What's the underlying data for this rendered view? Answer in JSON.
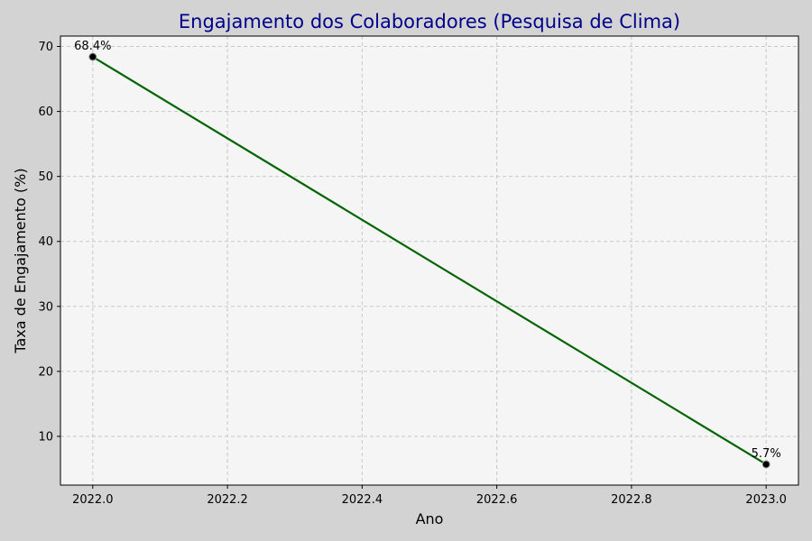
{
  "chart_data": {
    "type": "line",
    "title": "Engajamento dos Colaboradores (Pesquisa de Clima)",
    "xlabel": "Ano",
    "ylabel": "Taxa de Engajamento (%)",
    "xlim": [
      1995.95,
      2023.05
    ],
    "ylim": [
      2.5,
      71.6
    ],
    "x_ticks": [
      "2022.0",
      "2022.2",
      "2022.4",
      "2022.6",
      "2022.8",
      "2023.0"
    ],
    "x_tick_values": [
      2022.0,
      2022.2,
      2022.4,
      2022.6,
      2022.8,
      2023.0
    ],
    "y_ticks": [
      "10",
      "20",
      "30",
      "40",
      "50",
      "60",
      "70"
    ],
    "y_tick_values": [
      10,
      20,
      30,
      40,
      50,
      60,
      70
    ],
    "grid": true,
    "series": [
      {
        "x": [
          2022.0,
          2023.0
        ],
        "values": [
          68.4,
          5.7
        ],
        "labels": [
          "68.4%",
          "5.7%"
        ],
        "color": "#006400"
      }
    ],
    "colors": {
      "title": "#00008b",
      "plot_background": "#f5f5f5",
      "figure_background": "#d3d3d3",
      "line": "#006400",
      "marker_fill": "#000000"
    }
  }
}
